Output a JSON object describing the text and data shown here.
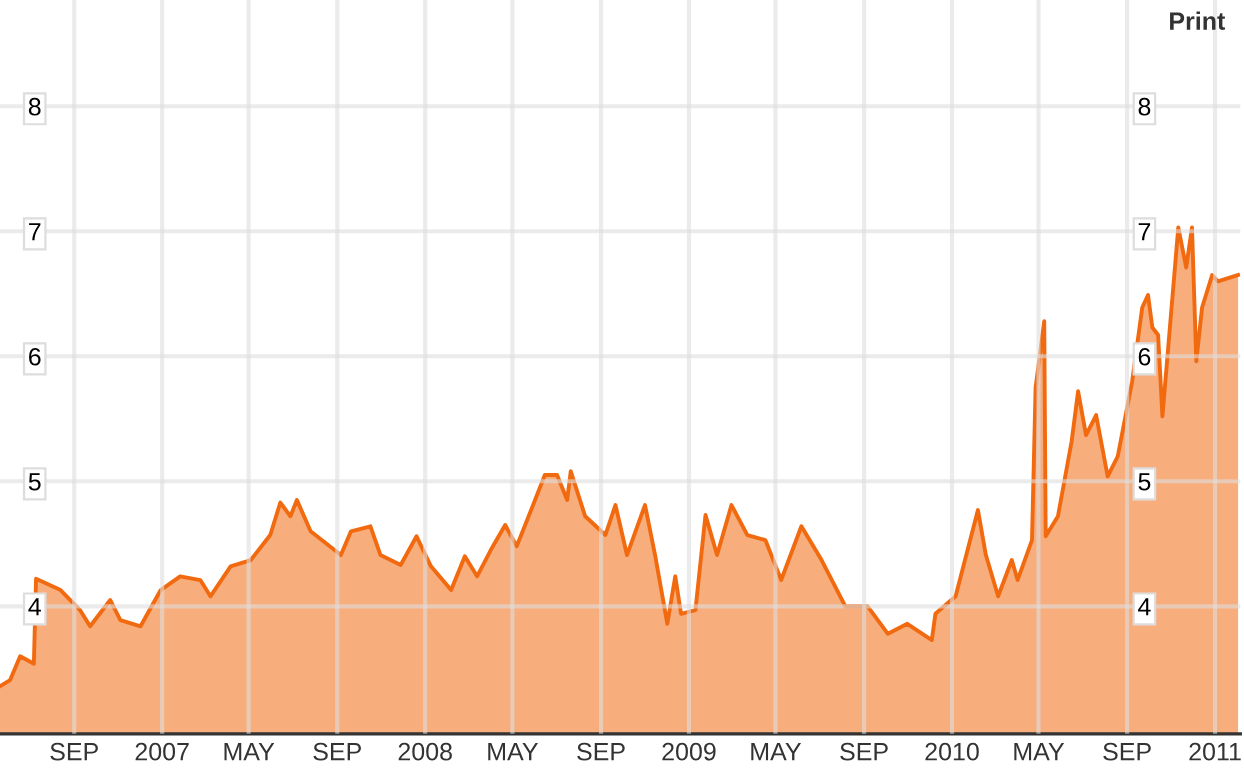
{
  "chart_data": {
    "type": "area",
    "annotations": [
      "Print"
    ],
    "x": [
      "2006-05-21",
      "2006-06-04",
      "2006-06-18",
      "2006-07-07",
      "2006-07-10",
      "2006-08-13",
      "2006-09-09",
      "2006-09-23",
      "2006-10-21",
      "2006-11-04",
      "2006-12-02",
      "2006-12-30",
      "2007-01-26",
      "2007-02-23",
      "2007-03-09",
      "2007-04-06",
      "2007-05-04",
      "2007-05-31",
      "2007-06-14",
      "2007-06-28",
      "2007-07-07",
      "2007-07-26",
      "2007-09-06",
      "2007-09-20",
      "2007-10-17",
      "2007-10-31",
      "2007-11-28",
      "2007-12-20",
      "2008-01-09",
      "2008-02-06",
      "2008-02-25",
      "2008-03-13",
      "2008-04-01",
      "2008-04-21",
      "2008-05-07",
      "2008-05-27",
      "2008-06-15",
      "2008-07-02",
      "2008-07-16",
      "2008-07-21",
      "2008-08-10",
      "2008-09-07",
      "2008-09-21",
      "2008-10-07",
      "2008-11-01",
      "2008-11-15",
      "2008-12-02",
      "2008-12-13",
      "2008-12-21",
      "2009-01-10",
      "2009-01-24",
      "2009-02-09",
      "2009-03-01",
      "2009-03-23",
      "2009-04-17",
      "2009-05-09",
      "2009-06-06",
      "2009-07-04",
      "2009-08-06",
      "2009-09-06",
      "2009-10-04",
      "2009-10-31",
      "2009-12-04",
      "2009-12-09",
      "2010-01-06",
      "2010-02-06",
      "2010-02-17",
      "2010-03-06",
      "2010-03-25",
      "2010-04-02",
      "2010-04-22",
      "2010-04-27",
      "2010-05-09",
      "2010-05-11",
      "2010-05-28",
      "2010-06-16",
      "2010-06-25",
      "2010-07-06",
      "2010-07-20",
      "2010-08-05",
      "2010-08-19",
      "2010-09-08",
      "2010-09-22",
      "2010-09-30",
      "2010-10-06",
      "2010-10-14",
      "2010-10-20",
      "2010-11-11",
      "2010-11-22",
      "2010-11-30",
      "2010-12-06",
      "2010-12-14",
      "2010-12-28",
      "2011-01-05",
      "2011-02-02"
    ],
    "series": [
      {
        "color": "#f26a10",
        "values": [
          3.36,
          3.41,
          3.6,
          3.54,
          4.22,
          4.13,
          3.97,
          3.84,
          4.05,
          3.89,
          3.84,
          4.13,
          4.24,
          4.21,
          4.08,
          4.32,
          4.37,
          4.57,
          4.83,
          4.72,
          4.85,
          4.6,
          4.41,
          4.6,
          4.64,
          4.41,
          4.33,
          4.56,
          4.32,
          4.13,
          4.4,
          4.24,
          4.45,
          4.65,
          4.48,
          4.77,
          5.05,
          5.05,
          4.85,
          5.08,
          4.72,
          4.57,
          4.81,
          4.41,
          4.81,
          4.41,
          3.86,
          4.24,
          3.94,
          3.97,
          4.73,
          4.41,
          4.81,
          4.57,
          4.53,
          4.21,
          4.64,
          4.37,
          4.0,
          4.0,
          3.78,
          3.86,
          3.73,
          3.94,
          4.08,
          4.77,
          4.41,
          4.08,
          4.37,
          4.21,
          4.53,
          5.75,
          6.28,
          4.56,
          4.72,
          5.32,
          5.72,
          5.37,
          5.53,
          5.04,
          5.2,
          5.8,
          6.39,
          6.49,
          6.23,
          6.17,
          5.52,
          7.03,
          6.71,
          7.03,
          5.96,
          6.39,
          6.65,
          6.6,
          6.65
        ]
      }
    ],
    "xlim": [
      "2006-05-21",
      "2011-02-05"
    ],
    "xticks": [
      {
        "value": "2006-09-01",
        "label": "SEP"
      },
      {
        "value": "2007-01-01",
        "label": "2007"
      },
      {
        "value": "2007-05-01",
        "label": "MAY"
      },
      {
        "value": "2007-09-01",
        "label": "SEP"
      },
      {
        "value": "2008-01-01",
        "label": "2008"
      },
      {
        "value": "2008-05-01",
        "label": "MAY"
      },
      {
        "value": "2008-09-01",
        "label": "SEP"
      },
      {
        "value": "2009-01-01",
        "label": "2009"
      },
      {
        "value": "2009-05-01",
        "label": "MAY"
      },
      {
        "value": "2009-09-01",
        "label": "SEP"
      },
      {
        "value": "2010-01-01",
        "label": "2010"
      },
      {
        "value": "2010-05-01",
        "label": "MAY"
      },
      {
        "value": "2010-09-01",
        "label": "SEP"
      },
      {
        "value": "2011-01-01",
        "label": "2011"
      }
    ],
    "ylim": [
      2.98,
      8.85
    ],
    "yticks": [
      4,
      5,
      6,
      7,
      8
    ],
    "y2lim": [
      2.98,
      8.85
    ],
    "y2ticks": [
      4,
      5,
      6,
      7,
      8
    ],
    "grid": true,
    "legend": false
  }
}
